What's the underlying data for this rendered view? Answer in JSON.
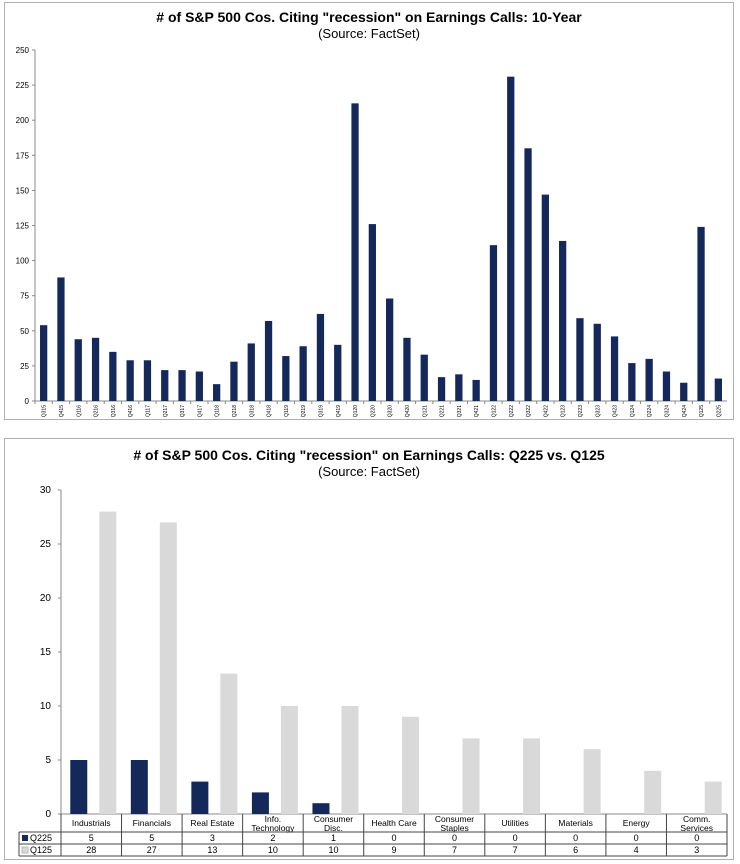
{
  "chart_data": [
    {
      "type": "bar",
      "title": "# of S&P 500 Cos. Citing \"recession\" on Earnings Calls: 10-Year",
      "subtitle": "(Source: FactSet)",
      "ylim": [
        0,
        250
      ],
      "yticks": [
        0,
        25,
        50,
        75,
        100,
        125,
        150,
        175,
        200,
        225,
        250
      ],
      "color": "#14285a",
      "categories": [
        "Q315",
        "Q415",
        "Q116",
        "Q216",
        "Q316",
        "Q416",
        "Q117",
        "Q217",
        "Q317",
        "Q417",
        "Q118",
        "Q218",
        "Q318",
        "Q418",
        "Q119",
        "Q219",
        "Q319",
        "Q419",
        "Q120",
        "Q220",
        "Q320",
        "Q420",
        "Q121",
        "Q221",
        "Q321",
        "Q421",
        "Q122",
        "Q222",
        "Q322",
        "Q422",
        "Q123",
        "Q223",
        "Q323",
        "Q423",
        "Q124",
        "Q224",
        "Q324",
        "Q424",
        "Q125",
        "Q225"
      ],
      "values": [
        54,
        88,
        44,
        45,
        35,
        29,
        29,
        22,
        22,
        21,
        12,
        28,
        41,
        57,
        32,
        39,
        62,
        40,
        212,
        126,
        73,
        45,
        33,
        17,
        19,
        15,
        111,
        231,
        180,
        147,
        114,
        59,
        55,
        46,
        27,
        30,
        21,
        13,
        124,
        16
      ]
    },
    {
      "type": "bar",
      "title": "# of S&P 500 Cos. Citing \"recession\" on Earnings Calls: Q225 vs. Q125",
      "subtitle": "(Source: FactSet)",
      "ylim": [
        0,
        30
      ],
      "yticks": [
        0,
        5,
        10,
        15,
        20,
        25,
        30
      ],
      "categories": [
        [
          "Industrials"
        ],
        [
          "Financials"
        ],
        [
          "Real Estate"
        ],
        [
          "Info.",
          "Technology"
        ],
        [
          "Consumer",
          "Disc."
        ],
        [
          "Health Care"
        ],
        [
          "Consumer",
          "Staples"
        ],
        [
          "Utilities"
        ],
        [
          "Materials"
        ],
        [
          "Energy"
        ],
        [
          "Comm.",
          "Services"
        ]
      ],
      "series": [
        {
          "name": "Q225",
          "color": "#14285a",
          "values": [
            5,
            5,
            3,
            2,
            1,
            0,
            0,
            0,
            0,
            0,
            0
          ]
        },
        {
          "name": "Q125",
          "color": "#d9d9d9",
          "values": [
            28,
            27,
            13,
            10,
            10,
            9,
            7,
            7,
            6,
            4,
            3
          ]
        }
      ]
    }
  ]
}
